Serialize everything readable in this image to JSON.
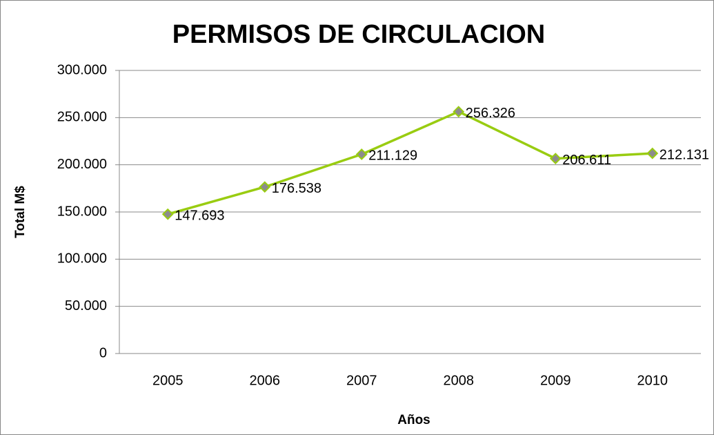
{
  "chart_data": {
    "type": "line",
    "title": "PERMISOS DE CIRCULACION",
    "x_label": "Años",
    "y_label": "Total M$",
    "categories": [
      "2005",
      "2006",
      "2007",
      "2008",
      "2009",
      "2010"
    ],
    "values": [
      147693,
      176538,
      211129,
      256326,
      206611,
      212131
    ],
    "value_labels": [
      "147.693",
      "176.538",
      "211.129",
      "256.326",
      "206.611",
      "212.131"
    ],
    "color": "#99cc11",
    "marker_color": "#8c8c8c",
    "ylim": [
      0,
      300000
    ],
    "yticks": [
      0,
      {
        "value": 50000,
        "label": "50.000"
      },
      {
        "value": 100000,
        "label": "100.000"
      },
      {
        "value": 150000,
        "label": "150.000"
      },
      {
        "value": 200000,
        "label": "200.000"
      },
      {
        "value": 250000,
        "label": "250.000"
      },
      {
        "value": 300000,
        "label": "300.000"
      }
    ],
    "grid": true
  }
}
